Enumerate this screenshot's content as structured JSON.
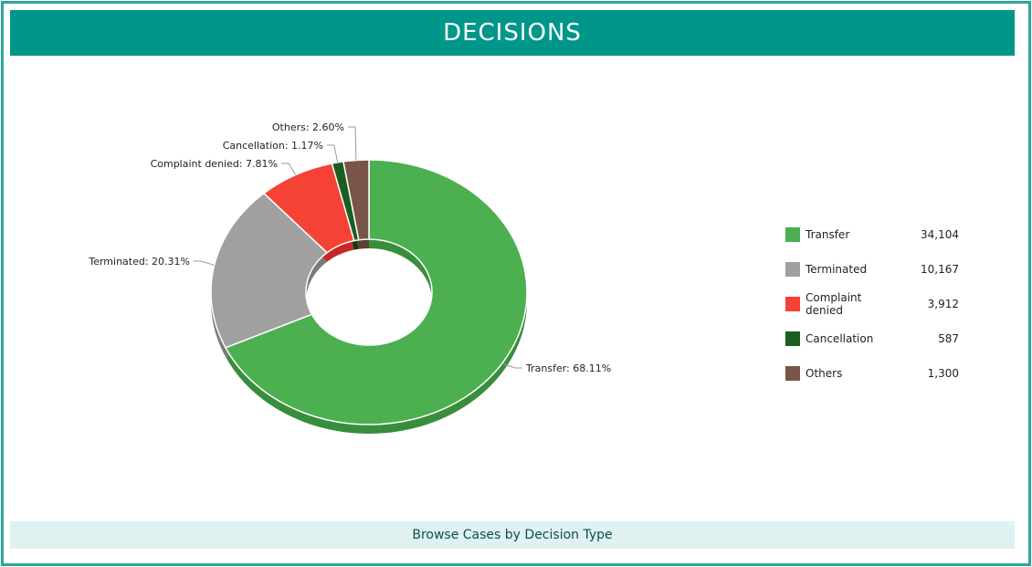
{
  "header": {
    "title": "DECISIONS"
  },
  "footer": {
    "link_label": "Browse Cases by Decision Type"
  },
  "chart_data": {
    "type": "pie",
    "donut": true,
    "title": "",
    "categories": [
      "Transfer",
      "Terminated",
      "Complaint denied",
      "Cancellation",
      "Others"
    ],
    "values": [
      34104,
      10167,
      3912,
      587,
      1300
    ],
    "percent_labels": [
      "Transfer: 68.11%",
      "Terminated: 20.31%",
      "Complaint denied: 7.81%",
      "Cancellation: 1.17%",
      "Others: 2.60%"
    ],
    "value_labels": [
      "34,104",
      "10,167",
      "3,912",
      "587",
      "1,300"
    ],
    "colors": [
      "#4caf50",
      "#a0a0a0",
      "#f44336",
      "#1b5e20",
      "#795548"
    ],
    "shadow_colors": [
      "#388e3c",
      "#7a7a7a",
      "#c62828",
      "#0e3d12",
      "#5d4037"
    ],
    "legend_position": "right"
  }
}
